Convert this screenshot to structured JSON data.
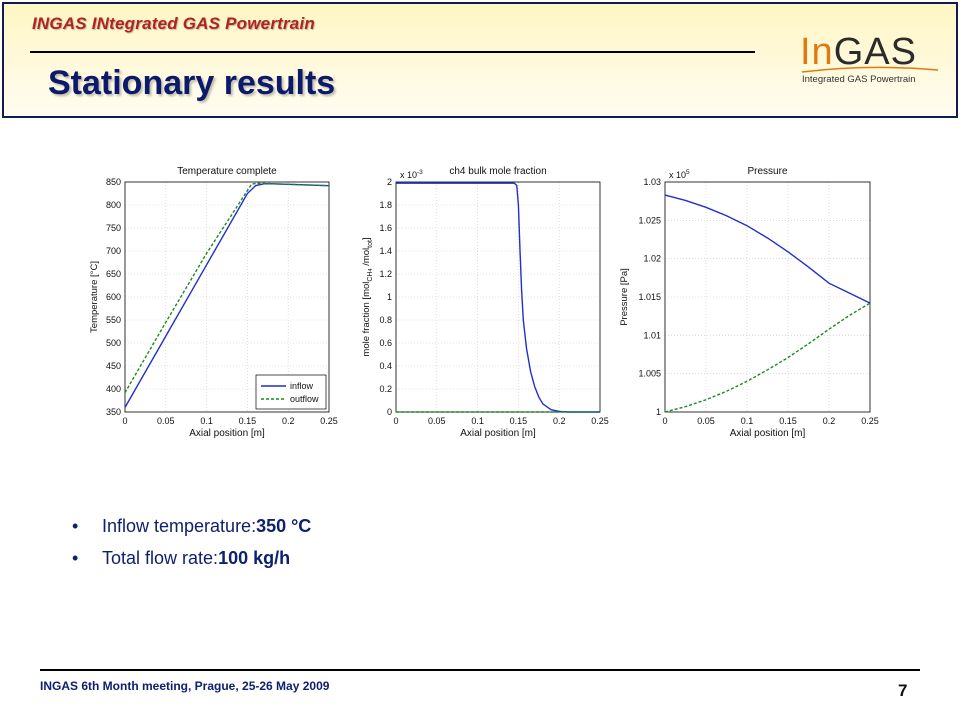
{
  "header": {
    "project_label": "INGAS INtegrated GAS Powertrain",
    "title": "Stationary results",
    "logo": {
      "prefix": "In",
      "main": "GAS",
      "subtitle": "Integrated GAS Powertrain",
      "prefix_color": "#e07a10"
    }
  },
  "bullets": [
    {
      "label": "Inflow temperature: ",
      "value": "350 °C"
    },
    {
      "label": "Total flow rate: ",
      "value": "100 kg/h"
    }
  ],
  "footer": {
    "meeting": "INGAS 6th Month meeting, Prague, 25-26 May 2009",
    "page": "7"
  },
  "chart_data": [
    {
      "type": "line",
      "title": "Temperature complete",
      "xlabel": "Axial position [m]",
      "ylabel": "Temperature [°C]",
      "xlim": [
        0,
        0.25
      ],
      "ylim": [
        350,
        850
      ],
      "xticks": [
        "0",
        "0.05",
        "0.1",
        "0.15",
        "0.2",
        "0.25"
      ],
      "yticks": [
        "350",
        "400",
        "450",
        "500",
        "550",
        "600",
        "650",
        "700",
        "750",
        "800",
        "850"
      ],
      "grid": true,
      "legend": "bottom-right",
      "series": [
        {
          "name": "inflow",
          "color": "#1f2fd0",
          "style": "solid",
          "x": [
            0,
            0.05,
            0.1,
            0.15,
            0.16,
            0.17,
            0.18,
            0.2,
            0.25
          ],
          "y": [
            360,
            515,
            670,
            825,
            842,
            846,
            846,
            845,
            842
          ]
        },
        {
          "name": "outflow",
          "color": "#1a8a1a",
          "style": "dashed",
          "x": [
            0,
            0.05,
            0.1,
            0.155,
            0.16,
            0.17,
            0.2,
            0.25
          ],
          "y": [
            392,
            545,
            695,
            845,
            847,
            847,
            845,
            842
          ]
        }
      ]
    },
    {
      "type": "line",
      "title": "ch4 bulk mole fraction",
      "xlabel": "Axial position [m]",
      "ylabel": "mole fraction [mol",
      "ylabel_sub1": "CH",
      "ylabel_sub2": "4",
      "ylabel_mid": " /mol",
      "ylabel_sub3": "tot",
      "ylabel_end": "]",
      "exponent_label": "x 10",
      "exponent_power": "-3",
      "xlim": [
        0,
        0.25
      ],
      "ylim": [
        0,
        2
      ],
      "xticks": [
        "0",
        "0.05",
        "0.1",
        "0.15",
        "0.2",
        "0.25"
      ],
      "yticks": [
        "0",
        "0.2",
        "0.4",
        "0.6",
        "0.8",
        "1",
        "1.2",
        "1.4",
        "1.6",
        "1.8",
        "2"
      ],
      "grid": true,
      "series": [
        {
          "color": "#1f2fd0",
          "style": "solid",
          "x": [
            0,
            0.145,
            0.148,
            0.15,
            0.152,
            0.154,
            0.156,
            0.16,
            0.165,
            0.17,
            0.175,
            0.18,
            0.19,
            0.2,
            0.21,
            0.25
          ],
          "y": [
            1.99,
            1.99,
            1.97,
            1.8,
            1.4,
            1.05,
            0.8,
            0.55,
            0.35,
            0.22,
            0.13,
            0.07,
            0.02,
            0.005,
            0.0,
            0.0
          ]
        },
        {
          "color": "#1a8a1a",
          "style": "dashed",
          "x": [
            0,
            0.25
          ],
          "y": [
            0.0,
            0.0
          ]
        }
      ]
    },
    {
      "type": "line",
      "title": "Pressure",
      "xlabel": "Axial position [m]",
      "ylabel": "Pressure [Pa]",
      "exponent_label": "x 10",
      "exponent_power": "5",
      "xlim": [
        0,
        0.25
      ],
      "ylim": [
        1,
        1.03
      ],
      "xticks": [
        "0",
        "0.05",
        "0.1",
        "0.15",
        "0.2",
        "0.25"
      ],
      "yticks": [
        "1",
        "1.005",
        "1.01",
        "1.015",
        "1.02",
        "1.025",
        "1.03"
      ],
      "grid": true,
      "series": [
        {
          "color": "#1f2fd0",
          "style": "solid",
          "x": [
            0,
            0.025,
            0.05,
            0.075,
            0.1,
            0.125,
            0.15,
            0.175,
            0.2,
            0.225,
            0.25
          ],
          "y": [
            1.0283,
            1.0276,
            1.0267,
            1.0256,
            1.0243,
            1.0227,
            1.0209,
            1.0189,
            1.0168,
            1.0155,
            1.0142
          ]
        },
        {
          "color": "#1a8a1a",
          "style": "dashed",
          "x": [
            0,
            0.025,
            0.05,
            0.075,
            0.1,
            0.125,
            0.15,
            0.175,
            0.2,
            0.225,
            0.25
          ],
          "y": [
            1.0,
            1.0007,
            1.0016,
            1.0027,
            1.004,
            1.0055,
            1.0071,
            1.0089,
            1.0108,
            1.0126,
            1.0142
          ]
        }
      ]
    }
  ]
}
